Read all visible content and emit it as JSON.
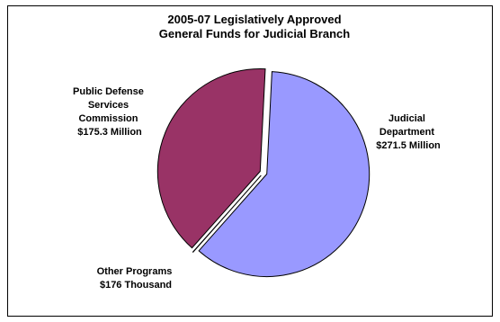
{
  "chart_data": {
    "type": "pie",
    "title_lines": [
      "2005-07 Legislatively Approved",
      "General Funds for Judicial Branch"
    ],
    "slices": [
      {
        "name": "Judicial Department",
        "value_label": "$271.5 Million",
        "label_lines": [
          "Judicial",
          "Department",
          "$271.5 Million"
        ],
        "value": 271.5,
        "unit": "Million",
        "color": "#9999FF"
      },
      {
        "name": "Other Programs",
        "value_label": "$176 Thousand",
        "label_lines": [
          "Other Programs",
          "$176 Thousand"
        ],
        "value": 0.176,
        "unit": "Million",
        "color": "#FFFFCC"
      },
      {
        "name": "Public Defense Services Commission",
        "value_label": "$175.3 Million",
        "label_lines": [
          "Public Defense",
          "Services",
          "Commission",
          "$175.3 Million"
        ],
        "value": 175.3,
        "unit": "Million",
        "color": "#993366"
      }
    ],
    "legend": "none",
    "exploded": true
  }
}
